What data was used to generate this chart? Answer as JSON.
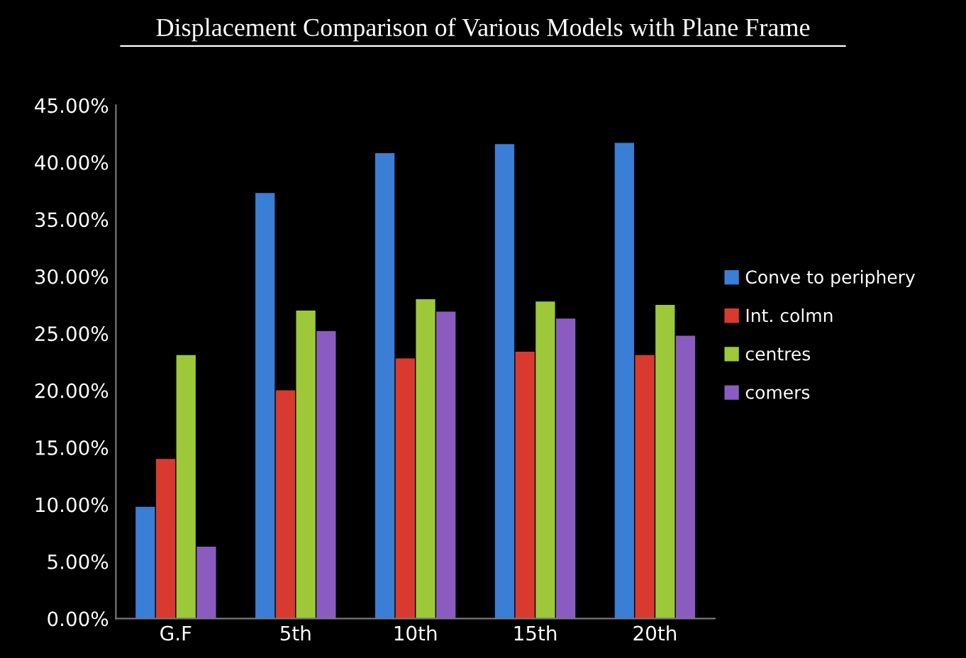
{
  "chart_data": {
    "type": "bar",
    "title": "Displacement Comparison of Various Models with Plane Frame",
    "categories": [
      "G.F",
      "5th",
      "10th",
      "15th",
      "20th"
    ],
    "series": [
      {
        "name": "Conve to periphery",
        "color": "#3a7fd5",
        "values": [
          9.8,
          37.3,
          40.8,
          41.6,
          41.7
        ]
      },
      {
        "name": "Int. colmn",
        "color": "#d83a30",
        "values": [
          14.0,
          20.0,
          22.8,
          23.4,
          23.1
        ]
      },
      {
        "name": "centres",
        "color": "#9cc83a",
        "values": [
          23.1,
          27.0,
          28.0,
          27.8,
          27.5
        ]
      },
      {
        "name": "comers",
        "color": "#8a5cc0",
        "values": [
          6.3,
          25.2,
          26.9,
          26.3,
          24.8
        ]
      }
    ],
    "ylim": [
      0,
      45
    ],
    "yticks": [
      {
        "value": 0,
        "label": "0.00%"
      },
      {
        "value": 5,
        "label": "5.00%"
      },
      {
        "value": 10,
        "label": "10.00%"
      },
      {
        "value": 15,
        "label": "15.00%"
      },
      {
        "value": 20,
        "label": "20.00%"
      },
      {
        "value": 25,
        "label": "25.00%"
      },
      {
        "value": 30,
        "label": "30.00%"
      },
      {
        "value": 35,
        "label": "35.00%"
      },
      {
        "value": 40,
        "label": "40.00%"
      },
      {
        "value": 45,
        "label": "45.00%"
      }
    ],
    "grid": false,
    "legend": "right"
  }
}
